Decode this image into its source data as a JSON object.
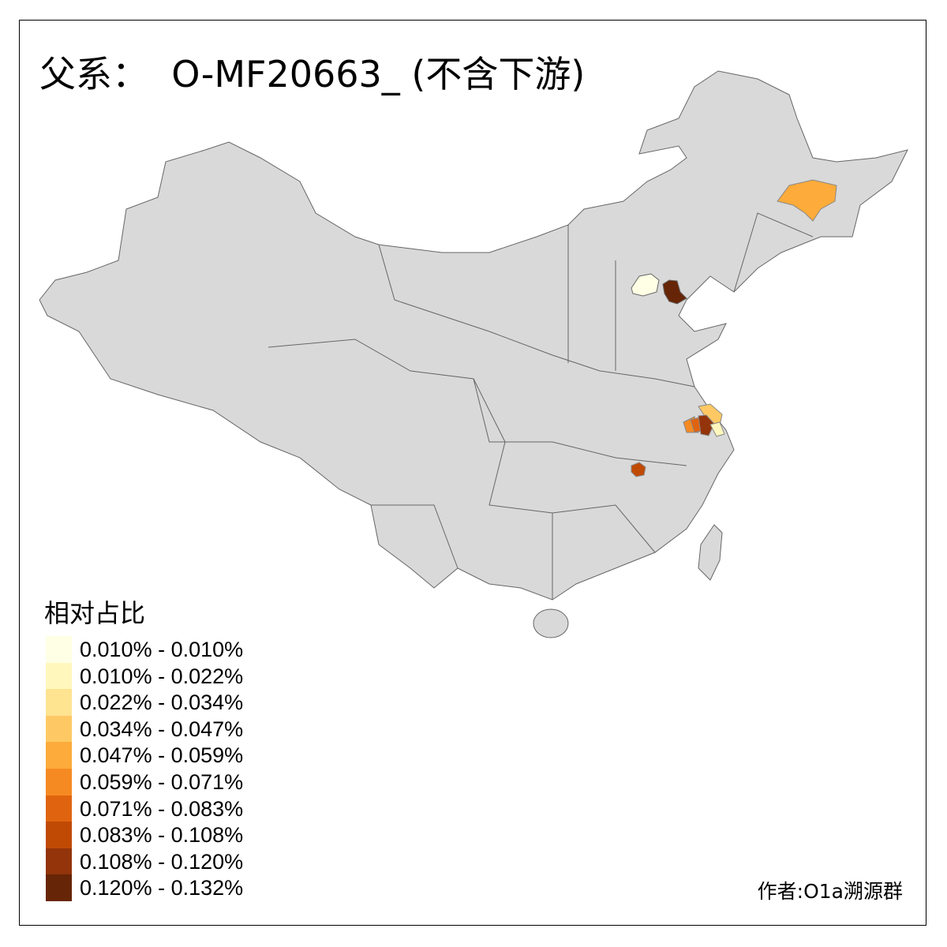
{
  "title": "父系：  O-MF20663_ (不含下游)",
  "legend": {
    "title": "相对占比",
    "items": [
      {
        "label": "0.010% - 0.010%",
        "color": "#ffffe5"
      },
      {
        "label": "0.010% - 0.022%",
        "color": "#fff7bc"
      },
      {
        "label": "0.022% - 0.034%",
        "color": "#fee391"
      },
      {
        "label": "0.034% - 0.047%",
        "color": "#fec964"
      },
      {
        "label": "0.047% - 0.059%",
        "color": "#fdab3a"
      },
      {
        "label": "0.059% - 0.071%",
        "color": "#f68a22"
      },
      {
        "label": "0.071% - 0.083%",
        "color": "#e0640f"
      },
      {
        "label": "0.083% - 0.108%",
        "color": "#c04a04"
      },
      {
        "label": "0.108% - 0.120%",
        "color": "#93340a"
      },
      {
        "label": "0.120% - 0.132%",
        "color": "#662506"
      }
    ]
  },
  "credit": "作者:O1a溯源群",
  "map_colors": {
    "base": "#d9d9d9",
    "border": "#666666"
  }
}
